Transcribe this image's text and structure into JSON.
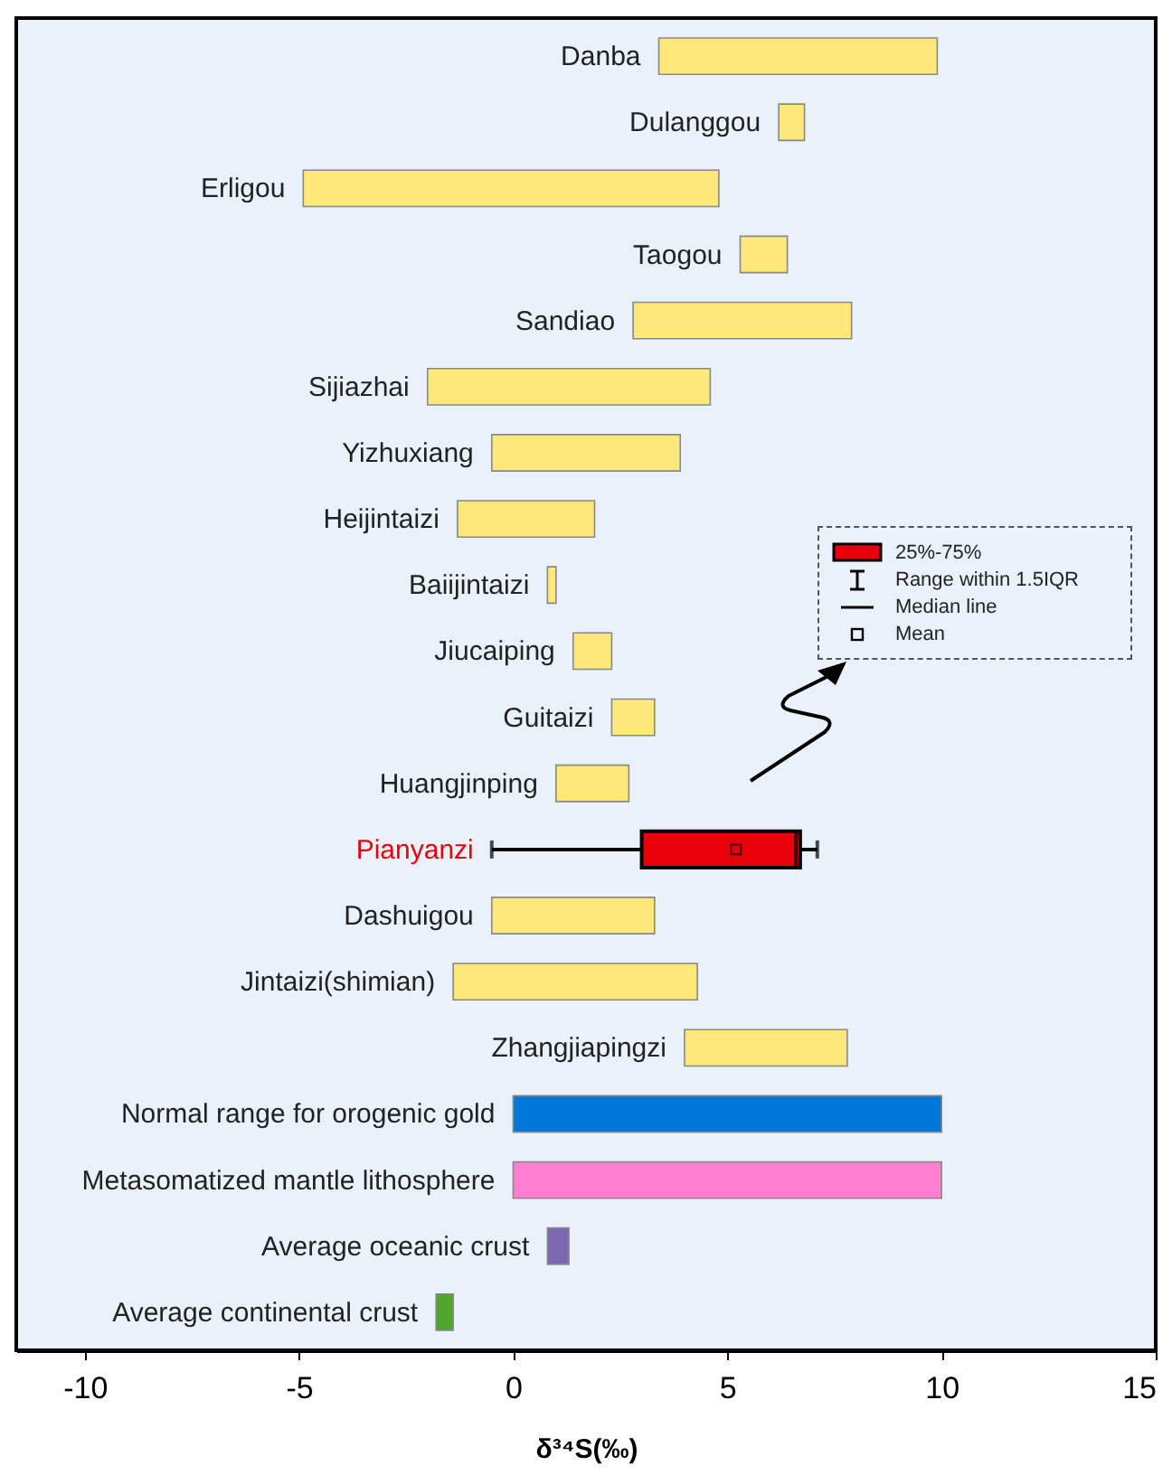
{
  "chart_data": {
    "type": "bar",
    "orientation": "horizontal",
    "xlabel": "δ³⁴S(‰)",
    "categories": [
      "Danba",
      "Dulanggou",
      "Erligou",
      "Taogou",
      "Sandiao",
      "Sijiazhai",
      "Yizhuxiang",
      "Heijintaizi",
      "Baiijintaizi",
      "Jiucaiping",
      "Guitaizi",
      "Huangjinping",
      "Pianyanzi",
      "Dashuigou",
      "Jintaizi(shimian)",
      "Zhangjiapingzi",
      "Normal range for orogenic gold",
      "Metasomatized mantle lithosphere",
      "Average oceanic crust",
      "Average continental crust"
    ],
    "xlim": [
      -11.6,
      15
    ],
    "xticks": [
      -10,
      -5,
      0,
      5,
      10,
      15
    ],
    "series": [
      {
        "type": "bar",
        "base": [
          3.4,
          6.2,
          -4.9,
          5.3,
          2.8,
          -2.0,
          -0.5,
          -1.3,
          0.8,
          1.4,
          2.3,
          1.0,
          null,
          -0.5,
          -1.4,
          4.0,
          0,
          0,
          0.8,
          -1.8
        ],
        "values": [
          6.5,
          0.6,
          9.7,
          1.1,
          5.1,
          6.6,
          4.4,
          3.2,
          0.2,
          0.9,
          1.0,
          1.7,
          null,
          3.8,
          5.7,
          3.8,
          10,
          10,
          0.5,
          0.4
        ],
        "colors": [
          "#ffe87a",
          "#ffe87a",
          "#ffe87a",
          "#ffe87a",
          "#ffe87a",
          "#ffe87a",
          "#ffe87a",
          "#ffe87a",
          "#ffe87a",
          "#ffe87a",
          "#ffe87a",
          "#ffe87a",
          null,
          "#ffe87a",
          "#ffe87a",
          "#ffe87a",
          "#0077d9",
          "#ff80d0",
          "#7b68b0",
          "#4ea72a"
        ]
      },
      {
        "type": "box",
        "color": "#e8000b",
        "boxes": [
          null,
          null,
          null,
          null,
          null,
          null,
          null,
          null,
          null,
          null,
          null,
          null,
          {
            "low": -0.5,
            "q1": 3.0,
            "median": 6.6,
            "q3": 6.7,
            "high": 7.1,
            "mean": 5.2
          },
          null,
          null,
          null,
          null,
          null,
          null,
          null
        ]
      }
    ],
    "annotations": [
      "25%-75%",
      "Range within 1.5IQR",
      "Median line",
      "Mean"
    ]
  }
}
